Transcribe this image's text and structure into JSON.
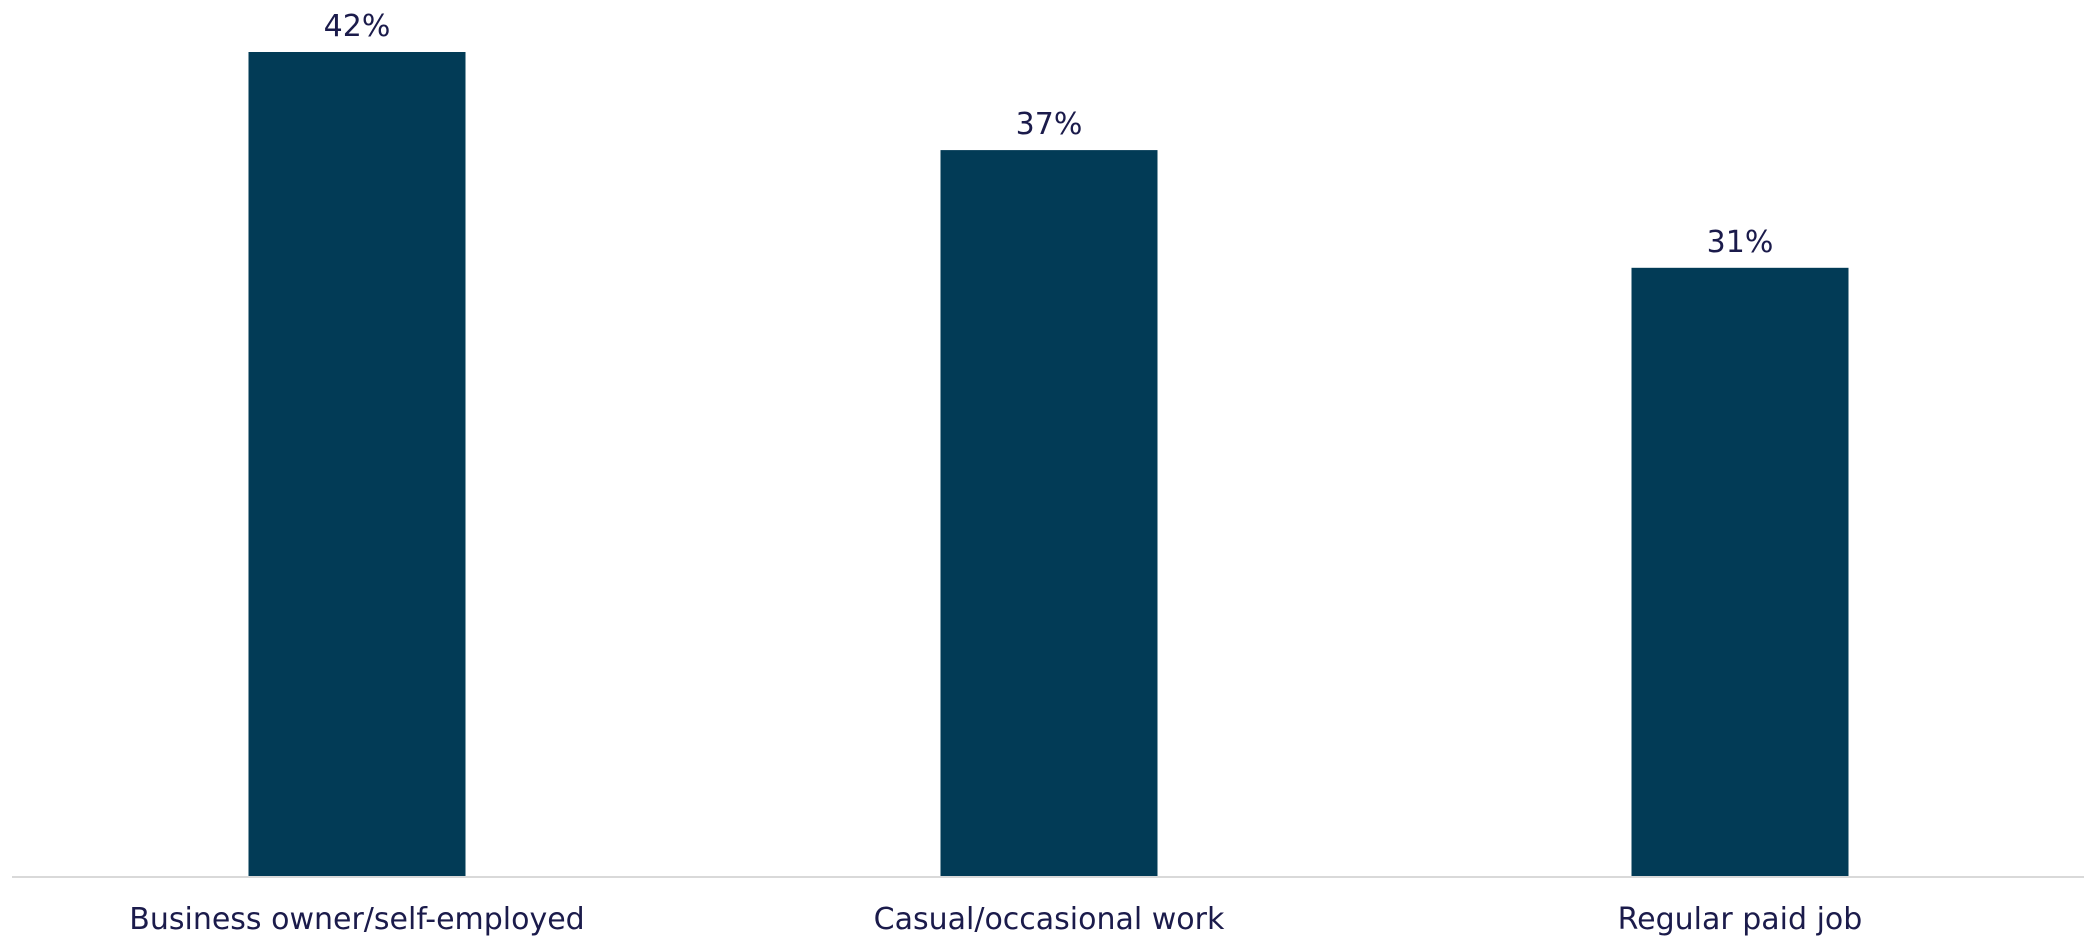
{
  "chart_data": {
    "type": "bar",
    "categories": [
      "Business owner/self-employed",
      "Casual/occasional work",
      "Regular paid job"
    ],
    "values": [
      42,
      37,
      31
    ],
    "value_labels": [
      "42%",
      "37%",
      "31%"
    ],
    "title": "",
    "xlabel": "",
    "ylabel": "",
    "ylim": [
      0,
      42
    ],
    "grid": false,
    "legend": "none",
    "colors": {
      "bar": "#023b56",
      "axis": "#d9d9d9",
      "text": "#1b1b4b"
    }
  }
}
